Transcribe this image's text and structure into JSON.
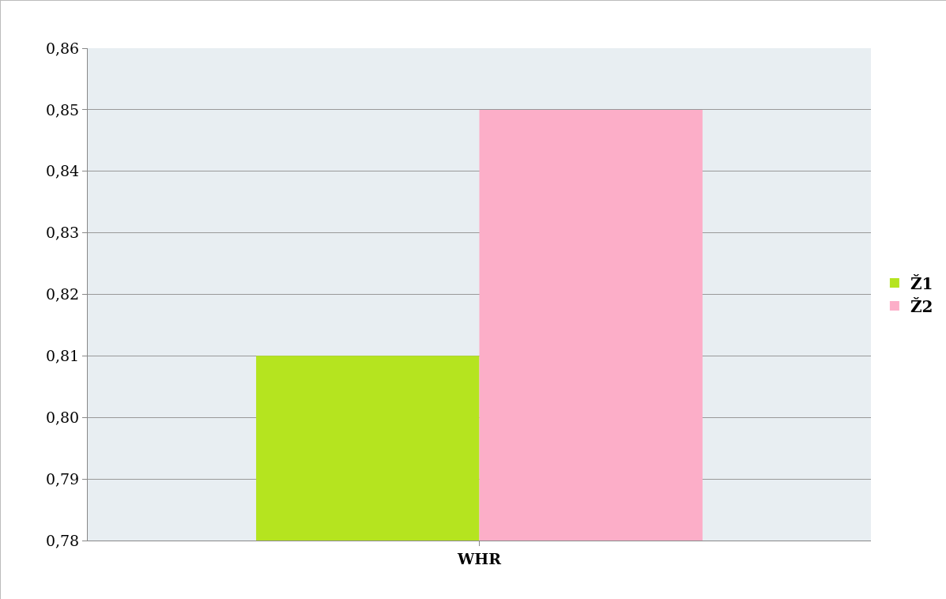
{
  "chart_data": {
    "type": "bar",
    "categories": [
      "WHR"
    ],
    "series": [
      {
        "name": "Ž1",
        "color": "#b5e41f",
        "values": [
          0.81
        ]
      },
      {
        "name": "Ž2",
        "color": "#fcaec8",
        "values": [
          0.85
        ]
      }
    ],
    "ylim": [
      0.78,
      0.86
    ],
    "yticks": [
      {
        "value": 0.78,
        "label": "0,78"
      },
      {
        "value": 0.79,
        "label": "0,79"
      },
      {
        "value": 0.8,
        "label": "0,80"
      },
      {
        "value": 0.81,
        "label": "0,81"
      },
      {
        "value": 0.82,
        "label": "0,82"
      },
      {
        "value": 0.83,
        "label": "0,83"
      },
      {
        "value": 0.84,
        "label": "0,84"
      },
      {
        "value": 0.85,
        "label": "0,85"
      },
      {
        "value": 0.86,
        "label": "0,86"
      }
    ],
    "grid": "y",
    "legend": "right"
  }
}
